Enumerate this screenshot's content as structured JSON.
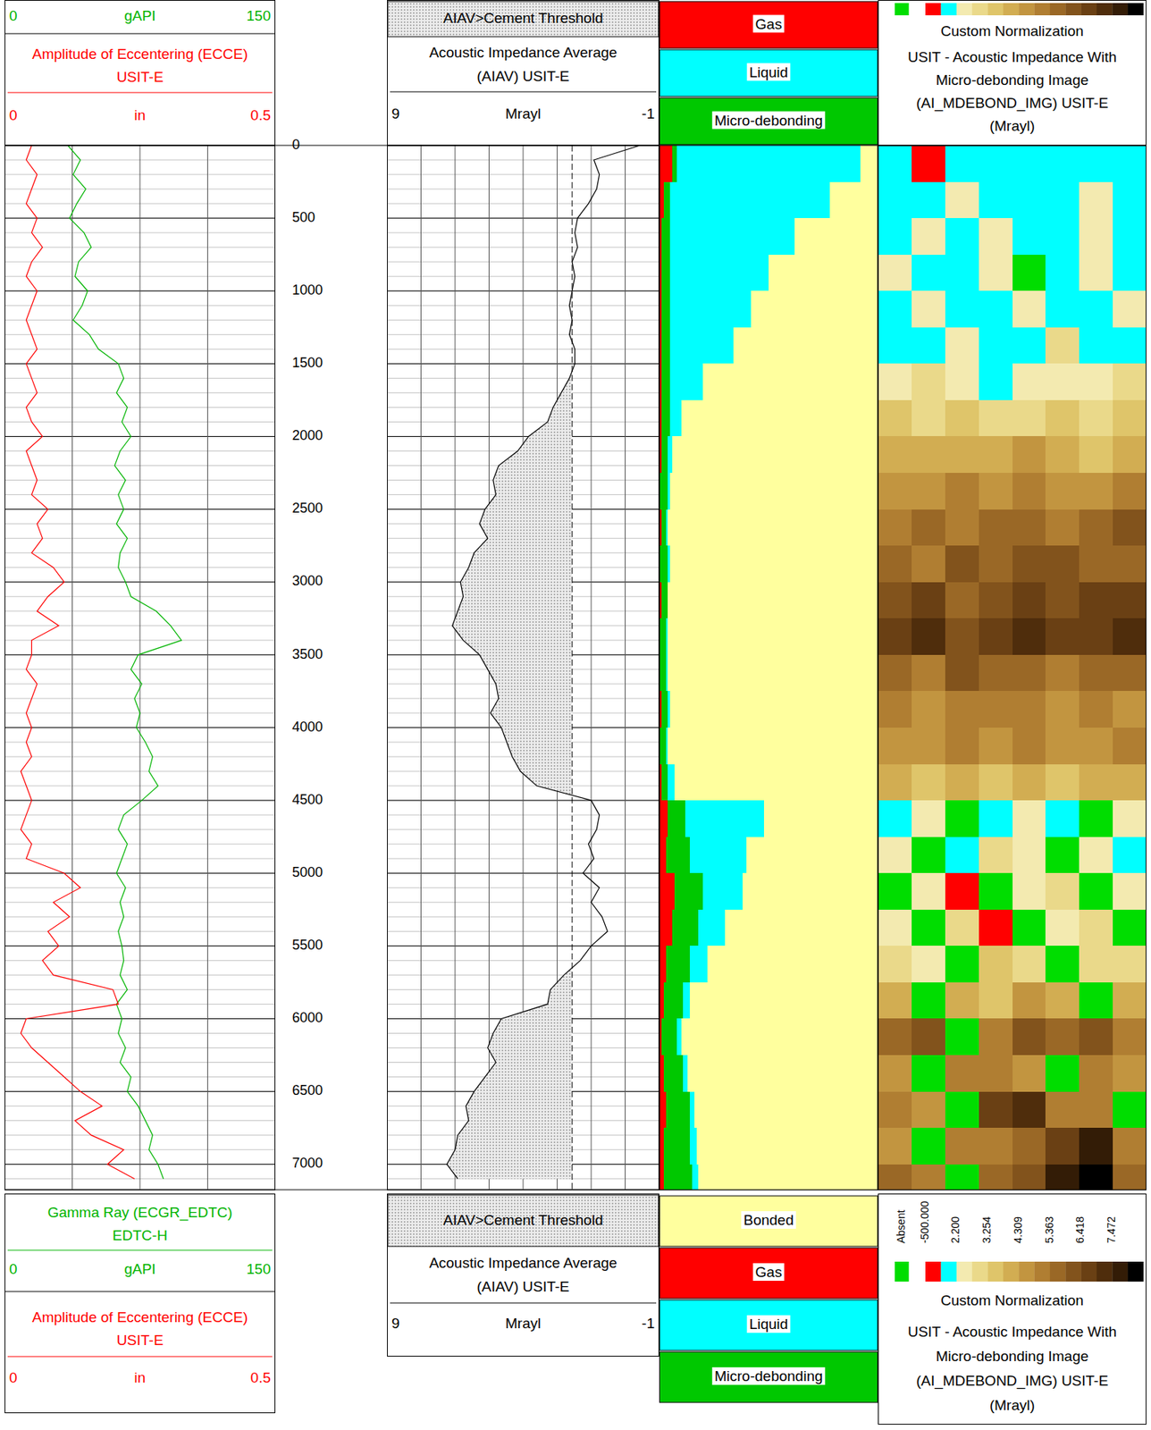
{
  "chart_data": {
    "type": "well_log",
    "ylim": [
      0,
      7175
    ],
    "yticks": [
      0,
      500,
      1000,
      1500,
      2000,
      2500,
      3000,
      3500,
      4000,
      4500,
      5000,
      5500,
      6000,
      6500,
      7000
    ],
    "grid": true,
    "depth": [
      0,
      100,
      200,
      300,
      400,
      500,
      600,
      700,
      800,
      900,
      1000,
      1100,
      1200,
      1300,
      1400,
      1500,
      1600,
      1700,
      1800,
      1900,
      2000,
      2100,
      2200,
      2300,
      2400,
      2500,
      2600,
      2700,
      2800,
      2900,
      3000,
      3100,
      3200,
      3300,
      3400,
      3500,
      3600,
      3700,
      3800,
      3900,
      4000,
      4100,
      4200,
      4300,
      4400,
      4500,
      4600,
      4700,
      4800,
      4900,
      5000,
      5100,
      5200,
      5300,
      5400,
      5500,
      5600,
      5700,
      5800,
      5900,
      6000,
      6100,
      6200,
      6300,
      6400,
      6500,
      6600,
      6700,
      6800,
      6900,
      7000,
      7100
    ],
    "depth_bins": [
      0,
      250,
      500,
      750,
      1000,
      1250,
      1500,
      1750,
      2000,
      2250,
      2500,
      2750,
      3000,
      3250,
      3500,
      3750,
      4000,
      4250,
      4500,
      4750,
      5000,
      5250,
      5500,
      5750,
      6000,
      6250,
      6500,
      6750,
      7000,
      7175
    ],
    "tracks": [
      {
        "type": "line",
        "grid_values": [
          37.5,
          75,
          112.5
        ],
        "series": [
          {
            "title_lines": [
              "Gamma Ray (ECGR_EDTC)",
              "EDTC-H"
            ],
            "unit": "gAPI",
            "xlim": [
              0,
              150
            ],
            "xticks": [
              0,
              150
            ],
            "color": "#00b400",
            "values": [
              35,
              42,
              38,
              45,
              40,
              36,
              44,
              48,
              41,
              39,
              46,
              43,
              38,
              47,
              52,
              63,
              66,
              62,
              68,
              65,
              70,
              64,
              61,
              67,
              63,
              66,
              62,
              68,
              64,
              63,
              67,
              70,
              84,
              92,
              98,
              74,
              70,
              76,
              72,
              75,
              73,
              78,
              82,
              80,
              85,
              76,
              66,
              63,
              68,
              65,
              62,
              67,
              64,
              66,
              63,
              65,
              66,
              64,
              68,
              62,
              65,
              63,
              67,
              64,
              70,
              68,
              74,
              78,
              82,
              80,
              85,
              88
            ]
          },
          {
            "title_lines": [
              "Amplitude of Eccentering (ECCE)",
              "USIT-E"
            ],
            "unit": "in",
            "xlim": [
              0,
              0.5
            ],
            "xticks": [
              0,
              0.5
            ],
            "color": "#ff0000",
            "values": [
              0.05,
              0.04,
              0.06,
              0.05,
              0.04,
              0.06,
              0.05,
              0.07,
              0.05,
              0.04,
              0.06,
              0.05,
              0.04,
              0.05,
              0.06,
              0.04,
              0.05,
              0.06,
              0.04,
              0.05,
              0.07,
              0.04,
              0.05,
              0.06,
              0.05,
              0.08,
              0.06,
              0.07,
              0.05,
              0.09,
              0.11,
              0.08,
              0.06,
              0.1,
              0.05,
              0.05,
              0.04,
              0.06,
              0.05,
              0.04,
              0.05,
              0.04,
              0.05,
              0.03,
              0.04,
              0.05,
              0.04,
              0.03,
              0.05,
              0.04,
              0.11,
              0.14,
              0.09,
              0.12,
              0.08,
              0.1,
              0.07,
              0.09,
              0.2,
              0.21,
              0.04,
              0.03,
              0.05,
              0.08,
              0.11,
              0.14,
              0.18,
              0.13,
              0.16,
              0.22,
              0.19,
              0.24
            ]
          }
        ]
      },
      {
        "type": "line",
        "grid_values": [
          7.75,
          6.5,
          5.25,
          4,
          2.75,
          1.5,
          0.25
        ],
        "threshold": 2.2,
        "fill_label": "AIAV>Cement Threshold",
        "series": [
          {
            "title_lines": [
              "Acoustic Impedance Average",
              "(AIAV) USIT-E"
            ],
            "unit": "Mrayl",
            "xlim": [
              9,
              -1
            ],
            "xticks": [
              9,
              -1
            ],
            "color": "#000000",
            "values": [
              -0.3,
              1.4,
              1.2,
              1.3,
              1.6,
              2.0,
              2.1,
              2.0,
              2.2,
              2.1,
              2.2,
              2.3,
              2.2,
              2.3,
              2.1,
              2.1,
              2.3,
              2.6,
              2.9,
              3.1,
              3.8,
              4.2,
              4.9,
              5.1,
              5.0,
              5.4,
              5.6,
              5.3,
              5.8,
              6.0,
              6.3,
              6.2,
              6.4,
              6.6,
              6.2,
              5.6,
              5.3,
              5.0,
              4.9,
              5.2,
              4.8,
              4.6,
              4.4,
              4.1,
              3.5,
              1.5,
              1.2,
              1.3,
              1.6,
              1.4,
              1.8,
              1.2,
              1.5,
              1.1,
              0.9,
              1.5,
              1.9,
              2.5,
              3.0,
              3.1,
              4.8,
              5.1,
              5.3,
              5.0,
              5.4,
              5.8,
              6.1,
              6.0,
              6.4,
              6.5,
              6.8,
              6.4
            ]
          }
        ]
      },
      {
        "type": "bar",
        "orientation": "horizontal",
        "stacked": true,
        "xlim": [
          0,
          100
        ],
        "series": [
          {
            "name": "Bonded",
            "color": "#ffff9e",
            "values": [
              8,
              22,
              38,
              50,
              58,
              66,
              80,
              90,
              94,
              95,
              96,
              95,
              96,
              96,
              96,
              95,
              96,
              93,
              52,
              60,
              62,
              70,
              78,
              86,
              90,
              87,
              84,
              83,
              82
            ]
          },
          {
            "name": "Gas",
            "color": "#ff0000",
            "values": [
              6,
              2,
              1,
              1,
              1,
              1,
              1,
              1,
              1,
              0,
              1,
              0,
              1,
              0,
              0,
              1,
              0,
              1,
              4,
              3,
              7,
              6,
              3,
              2,
              1,
              2,
              3,
              2,
              2
            ]
          },
          {
            "name": "Liquid",
            "color": "#00ffff",
            "values": [
              84,
              73,
              57,
              45,
              37,
              29,
              15,
              5,
              2,
              1,
              1,
              1,
              0,
              1,
              1,
              1,
              1,
              3,
              36,
              26,
              18,
              12,
              8,
              3,
              2,
              2,
              2,
              3,
              3
            ]
          },
          {
            "name": "Micro-debonding",
            "color": "#00c800",
            "values": [
              2,
              3,
              4,
              4,
              4,
              4,
              4,
              4,
              3,
              4,
              2,
              4,
              3,
              3,
              3,
              3,
              3,
              3,
              8,
              11,
              13,
              12,
              11,
              9,
              7,
              9,
              11,
              12,
              13
            ]
          }
        ]
      },
      {
        "type": "heatmap",
        "title_lines": [
          "USIT - Acoustic Impedance With",
          "Micro-debonding Image",
          "(AI_MDEBOND_IMG) USIT-E",
          "(Mrayl)"
        ],
        "colorbar": {
          "normalization": "Custom Normalization",
          "absent_label": "Absent",
          "absent_color": "#00dd00",
          "bins": [
            -500,
            0.3,
            2.2,
            2.727,
            3.254,
            3.781,
            4.309,
            4.836,
            5.363,
            5.89,
            6.418,
            6.945,
            7.472,
            7.999,
            8.526
          ],
          "colors": [
            "#ff0000",
            "#00ffff",
            "#f3eab0",
            "#ead98a",
            "#dfc56a",
            "#d2ad52",
            "#c29540",
            "#b07e32",
            "#9a6826",
            "#82531c",
            "#6a4014",
            "#4f2d0c",
            "#331c06",
            "#000000"
          ],
          "ticks": [
            {
              "value": -500,
              "label": "-500.000"
            },
            {
              "value": 2.2,
              "label": "2.200"
            },
            {
              "value": 3.254,
              "label": "3.254"
            },
            {
              "value": 4.309,
              "label": "4.309"
            },
            {
              "value": 5.363,
              "label": "5.363"
            },
            {
              "value": 6.418,
              "label": "6.418"
            },
            {
              "value": 7.472,
              "label": "7.472"
            }
          ]
        },
        "cells": [
          [
            1.8,
            0.1,
            1.9,
            1.7,
            1.8,
            2.0,
            1.9,
            1.8
          ],
          [
            1.9,
            1.8,
            2.3,
            1.9,
            2.0,
            1.8,
            2.4,
            1.9
          ],
          [
            2.0,
            2.5,
            1.9,
            2.6,
            2.0,
            1.9,
            2.3,
            2.0
          ],
          [
            2.4,
            1.9,
            2.0,
            2.7,
            null,
            2.1,
            2.5,
            1.9
          ],
          [
            1.9,
            2.6,
            2.1,
            1.8,
            2.4,
            2.0,
            1.9,
            2.6
          ],
          [
            2.0,
            1.9,
            2.5,
            2.1,
            1.9,
            2.8,
            2.0,
            1.8
          ],
          [
            2.6,
            2.9,
            2.4,
            2.1,
            2.7,
            2.5,
            2.2,
            2.9
          ],
          [
            3.3,
            3.0,
            3.6,
            3.2,
            2.9,
            3.4,
            3.1,
            3.5
          ],
          [
            4.1,
            3.8,
            4.3,
            3.9,
            4.4,
            4.0,
            3.7,
            4.2
          ],
          [
            4.8,
            4.5,
            5.0,
            4.6,
            4.9,
            4.4,
            4.7,
            5.1
          ],
          [
            5.2,
            5.6,
            4.9,
            5.4,
            5.8,
            5.1,
            5.5,
            5.9
          ],
          [
            5.7,
            5.3,
            6.0,
            5.5,
            5.9,
            6.2,
            5.4,
            5.8
          ],
          [
            6.1,
            6.5,
            5.8,
            6.3,
            6.8,
            6.0,
            6.6,
            6.9
          ],
          [
            6.6,
            7.0,
            6.4,
            6.9,
            7.3,
            6.7,
            6.5,
            7.1
          ],
          [
            5.6,
            5.2,
            5.9,
            5.4,
            5.7,
            5.3,
            5.8,
            5.5
          ],
          [
            5.0,
            4.7,
            5.3,
            4.9,
            5.2,
            4.8,
            5.1,
            4.6
          ],
          [
            4.8,
            4.5,
            4.9,
            4.6,
            5.0,
            4.4,
            4.7,
            4.9
          ],
          [
            3.9,
            3.5,
            4.2,
            3.6,
            4.0,
            3.4,
            3.8,
            4.1
          ],
          [
            1.6,
            2.4,
            null,
            1.8,
            2.6,
            1.5,
            null,
            2.3
          ],
          [
            2.5,
            null,
            1.9,
            2.8,
            2.3,
            null,
            2.7,
            2.0
          ],
          [
            null,
            2.6,
            0.2,
            null,
            2.4,
            3.0,
            null,
            2.5
          ],
          [
            2.4,
            null,
            2.8,
            0.1,
            null,
            2.5,
            2.9,
            null
          ],
          [
            3.1,
            2.7,
            null,
            3.3,
            2.9,
            null,
            3.2,
            2.8
          ],
          [
            3.9,
            null,
            4.2,
            3.6,
            4.4,
            3.8,
            null,
            4.0
          ],
          [
            5.4,
            5.9,
            null,
            5.2,
            6.3,
            5.6,
            6.0,
            5.3
          ],
          [
            4.6,
            null,
            4.9,
            5.3,
            4.4,
            null,
            5.0,
            4.7
          ],
          [
            5.1,
            4.8,
            null,
            6.8,
            7.4,
            5.3,
            4.9,
            null
          ],
          [
            4.7,
            null,
            5.2,
            4.9,
            5.6,
            6.9,
            7.6,
            5.0
          ],
          [
            5.4,
            5.0,
            null,
            5.8,
            6.4,
            7.8,
            8.1,
            5.6
          ]
        ]
      }
    ]
  }
}
